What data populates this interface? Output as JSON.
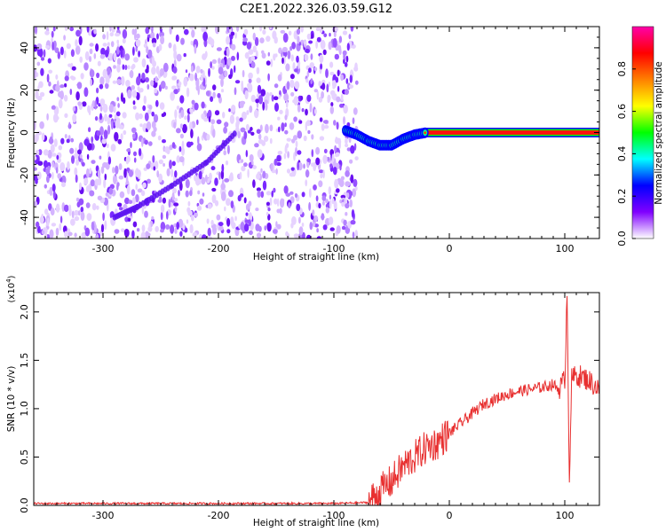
{
  "title": "C2E1.2022.326.03.59.G12",
  "chart_data": [
    {
      "type": "heatmap",
      "xlabel": "Height of straight line (km)",
      "ylabel": "Frequency (Hz)",
      "xlim": [
        -360,
        130
      ],
      "ylim": [
        -50,
        50
      ],
      "x_ticks": [
        -300,
        -200,
        -100,
        0,
        100
      ],
      "y_ticks": [
        -40,
        -20,
        0,
        20,
        40
      ],
      "noise_region_x": [
        -360,
        -80
      ],
      "signal_track": {
        "x": [
          -90,
          -80,
          -70,
          -60,
          -50,
          -40,
          -30,
          -20,
          -10,
          0,
          50,
          100,
          130
        ],
        "y": [
          1,
          -1,
          -4,
          -6,
          -6,
          -3,
          -1,
          0,
          0,
          0,
          0,
          0,
          0
        ],
        "line_y_band": [
          -1,
          1
        ]
      },
      "diagonal_feature": {
        "x": [
          -290,
          -270,
          -240,
          -210,
          -185
        ],
        "y": [
          -40,
          -35,
          -25,
          -14,
          0
        ]
      },
      "colorbar": {
        "label": "Normalized spectral amplitude",
        "range": [
          0.0,
          1.0
        ],
        "ticks": [
          "0.0",
          "0.2",
          "0.4",
          "0.6",
          "0.8"
        ],
        "colors": [
          "#ffffff",
          "#8000ff",
          "#0000ff",
          "#00ffff",
          "#00ff00",
          "#ffff00",
          "#ff8000",
          "#ff0000",
          "#ff00aa"
        ]
      }
    },
    {
      "type": "line",
      "xlabel": "Height of straight line (km)",
      "ylabel": "SNR (10 * v/v)",
      "y_multiplier": "(x10",
      "y_exponent": "4",
      "y_multiplier_close": ")",
      "xlim": [
        -360,
        130
      ],
      "ylim": [
        0.0,
        2.2
      ],
      "x_ticks": [
        -300,
        -200,
        -100,
        0,
        100
      ],
      "y_ticks": [
        "0.0",
        "0.5",
        "1.0",
        "1.5",
        "2.0"
      ],
      "line_color": "#e83030",
      "series": [
        {
          "x": [
            -360,
            -300,
            -200,
            -100,
            -70,
            -60,
            -50,
            -40,
            -30,
            -20,
            -10,
            0,
            10,
            20,
            30,
            40,
            50,
            60,
            70,
            80,
            90,
            95,
            100,
            102,
            104,
            106,
            110,
            120,
            130
          ],
          "y": [
            0.02,
            0.02,
            0.02,
            0.02,
            0.03,
            0.15,
            0.25,
            0.4,
            0.5,
            0.6,
            0.65,
            0.75,
            0.85,
            0.95,
            1.05,
            1.1,
            1.15,
            1.18,
            1.2,
            1.22,
            1.25,
            1.2,
            1.3,
            2.2,
            0.3,
            1.3,
            1.35,
            1.3,
            1.2
          ]
        }
      ]
    }
  ]
}
